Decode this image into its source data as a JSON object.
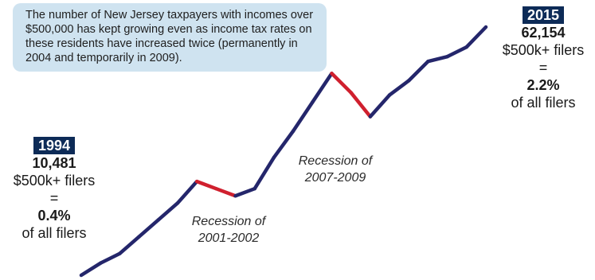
{
  "note": "The number of New Jersey taxpayers with incomes over $500,000 has kept growing even as income tax rates on these residents have increased twice (permanently in 2004 and temporarily in 2009).",
  "start": {
    "year": "1994",
    "count": "10,481",
    "line1": "$500k+ filers",
    "equals": "=",
    "pct": "0.4%",
    "line2": "of all filers"
  },
  "end": {
    "year": "2015",
    "count": "62,154",
    "line1": "$500k+ filers",
    "equals": "=",
    "pct": "2.2%",
    "line2": "of all filers"
  },
  "recessions": [
    {
      "line1": "Recession of",
      "line2": "2001-2002"
    },
    {
      "line1": "Recession of",
      "line2": "2007-2009"
    }
  ],
  "chart_data": {
    "type": "line",
    "x": [
      1994,
      1995,
      1996,
      1997,
      1998,
      1999,
      2000,
      2001,
      2002,
      2003,
      2004,
      2005,
      2006,
      2007,
      2008,
      2009,
      2010,
      2011,
      2012,
      2013,
      2014,
      2015
    ],
    "values": [
      10481,
      13000,
      15000,
      18500,
      22000,
      25500,
      30000,
      28500,
      27000,
      28500,
      35000,
      40500,
      46500,
      52500,
      48500,
      43500,
      48000,
      51000,
      55000,
      56000,
      58000,
      62154
    ],
    "recession_segments": [
      [
        2000,
        2002
      ],
      [
        2007,
        2009
      ]
    ],
    "colors": {
      "line": "#24266b",
      "recession": "#d0202e",
      "box": "#cfe3f0",
      "year_badge": "#0d2b57"
    },
    "grid": false,
    "axes_visible": false
  }
}
